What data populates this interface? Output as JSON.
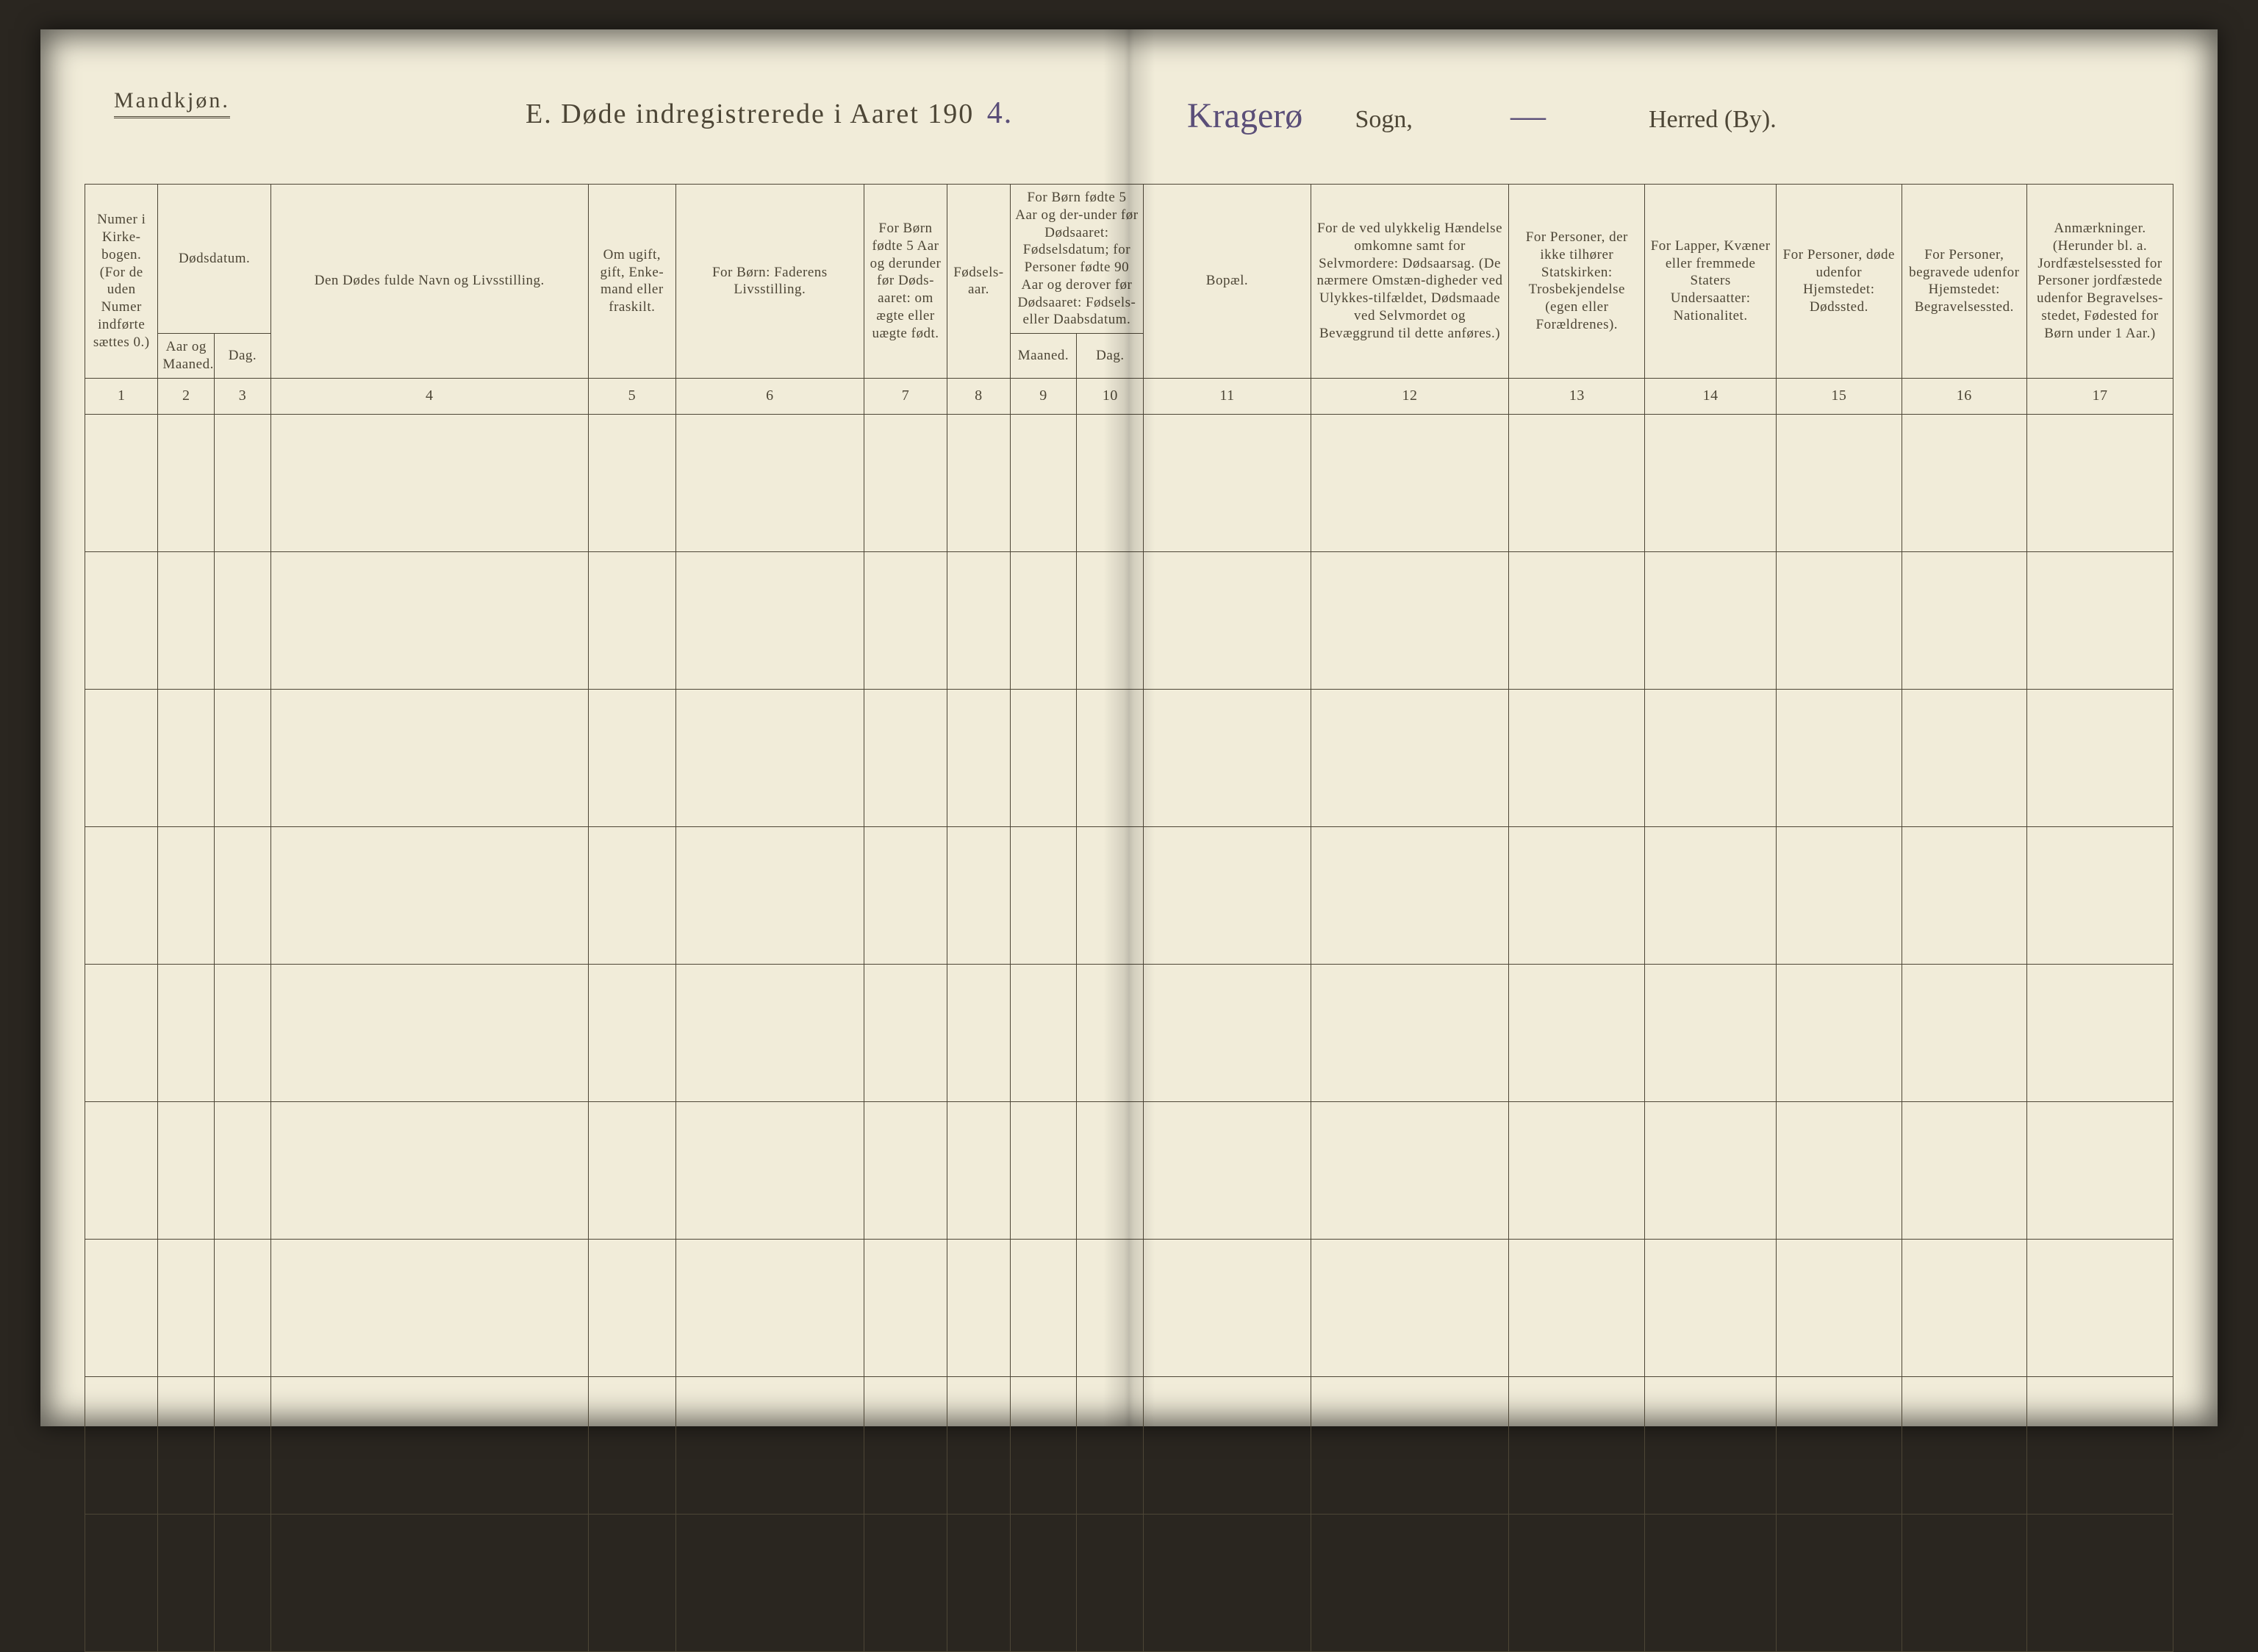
{
  "header": {
    "gender_label": "Mandkjøn.",
    "title_prefix": "E.  Døde indregistrerede i Aaret 190",
    "year_suffix_handwritten": "4.",
    "sogn_handwritten": "Kragerø",
    "sogn_label": "Sogn,",
    "herred_handwritten": "—",
    "herred_label": "Herred (By)."
  },
  "table": {
    "col_widths_pct": [
      3.5,
      2.7,
      2.7,
      15.2,
      4.2,
      9.0,
      4.0,
      3.0,
      3.2,
      3.2,
      8.0,
      9.5,
      6.5,
      6.3,
      6.0,
      6.0,
      7.0
    ],
    "header_row1": {
      "c1": "Numer i Kirke-bogen. (For de uden Numer indførte sættes 0.)",
      "c2_3": "Dødsdatum.",
      "c4": "Den Dødes fulde Navn og Livsstilling.",
      "c5": "Om ugift, gift, Enke-mand eller fraskilt.",
      "c6": "For Børn: Faderens Livsstilling.",
      "c7": "For Børn fødte 5 Aar og derunder før Døds-aaret: om ægte eller uægte født.",
      "c8": "Fødsels-aar.",
      "c9_10": "For Børn fødte 5 Aar og der-under før Dødsaaret: Fødselsdatum; for Personer fødte 90 Aar og derover før Dødsaaret: Fødsels- eller Daabsdatum.",
      "c11": "Bopæl.",
      "c12": "For de ved ulykkelig Hændelse omkomne samt for Selvmordere: Dødsaarsag. (De nærmere Omstæn-digheder ved Ulykkes-tilfældet, Dødsmaade ved Selvmordet og Bevæggrund til dette anføres.)",
      "c13": "For Personer, der ikke tilhører Statskirken: Trosbekjendelse (egen eller Forældrenes).",
      "c14": "For Lapper, Kvæner eller fremmede Staters Undersaatter: Nationalitet.",
      "c15": "For Personer, døde udenfor Hjemstedet: Dødssted.",
      "c16": "For Personer, begravede udenfor Hjemstedet: Begravelsessted.",
      "c17": "Anmærkninger. (Herunder bl. a. Jordfæstelsessted for Personer jordfæstede udenfor Begravelses-stedet, Fødested for Børn under 1 Aar.)"
    },
    "header_row2": {
      "c2": "Aar og Maaned.",
      "c3": "Dag.",
      "c9": "Maaned.",
      "c10": "Dag."
    },
    "col_numbers": [
      "1",
      "2",
      "3",
      "4",
      "5",
      "6",
      "7",
      "8",
      "9",
      "10",
      "11",
      "12",
      "13",
      "14",
      "15",
      "16",
      "17"
    ],
    "data_rows": 9
  },
  "styles": {
    "page_bg": "#f1ecd9",
    "ink": "#4d4636",
    "hand_ink": "#5a4e78",
    "outer_bg": "#2a2620"
  }
}
